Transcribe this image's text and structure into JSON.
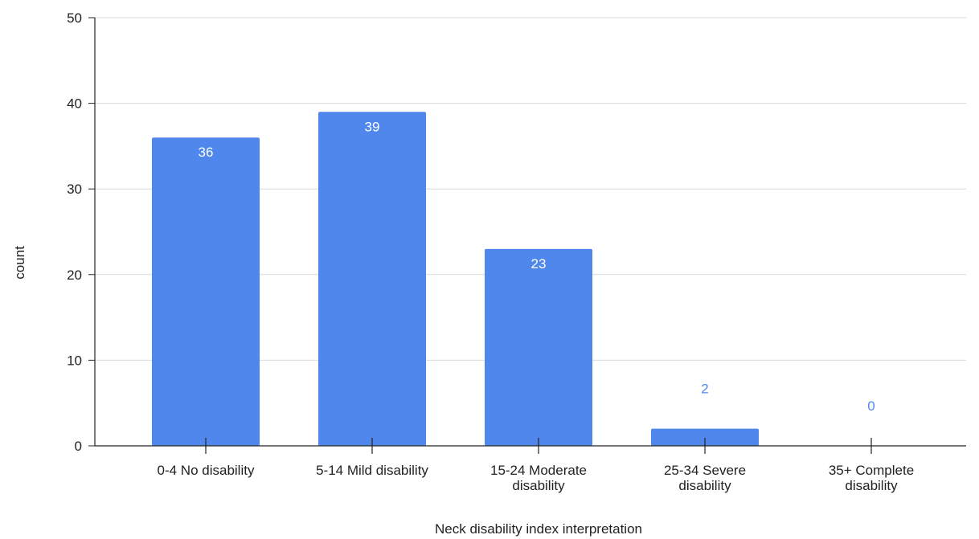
{
  "chart_data": {
    "type": "bar",
    "title": "",
    "xlabel": "Neck disability index interpretation",
    "ylabel": "count",
    "categories": [
      "0-4 No disability",
      "5-14 Mild disability",
      "15-24 Moderate disability",
      "25-34 Severe disability",
      "35+ Complete disability"
    ],
    "category_lines": [
      [
        "0-4 No disability"
      ],
      [
        "5-14 Mild disability"
      ],
      [
        "15-24 Moderate",
        "disability"
      ],
      [
        "25-34 Severe",
        "disability"
      ],
      [
        "35+ Complete",
        "disability"
      ]
    ],
    "values": [
      36,
      39,
      23,
      2,
      0
    ],
    "data_labels": [
      "36",
      "39",
      "23",
      "2",
      "0"
    ],
    "ylim": [
      0,
      50
    ],
    "yticks": [
      0,
      10,
      20,
      30,
      40,
      50
    ],
    "grid": true,
    "legend": "none",
    "colors": {
      "bar": "#5087ec",
      "grid": "#d9d9d9",
      "axis": "#222222",
      "label_inside": "#ffffff",
      "label_outside": "#5087ec"
    }
  }
}
